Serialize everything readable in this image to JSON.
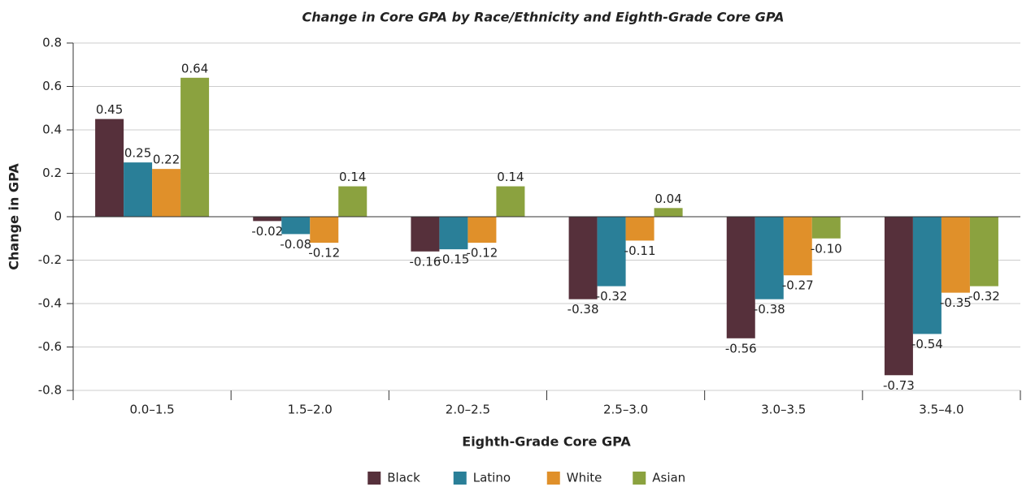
{
  "chart_data": {
    "type": "bar",
    "title": "Change in Core GPA by Race/Ethnicity and Eighth-Grade Core GPA",
    "xlabel": "Eighth-Grade Core GPA",
    "ylabel": "Change in GPA",
    "categories": [
      "0.0–1.5",
      "1.5–2.0",
      "2.0–2.5",
      "2.5–3.0",
      "3.0–3.5",
      "3.5–4.0"
    ],
    "series": [
      {
        "name": "Black",
        "color": "#56303b",
        "values": [
          0.45,
          -0.02,
          -0.16,
          -0.38,
          -0.56,
          -0.73
        ]
      },
      {
        "name": "Latino",
        "color": "#2a7f98",
        "values": [
          0.25,
          -0.08,
          -0.15,
          -0.32,
          -0.38,
          -0.54
        ]
      },
      {
        "name": "White",
        "color": "#e0902a",
        "values": [
          0.22,
          -0.12,
          -0.12,
          -0.11,
          -0.27,
          -0.35
        ]
      },
      {
        "name": "Asian",
        "color": "#8ba23f",
        "values": [
          0.64,
          0.14,
          0.14,
          0.04,
          -0.1,
          -0.32
        ],
        "value_labels": [
          "0.64",
          "0.14",
          "0.14",
          "0.04",
          "-0.10",
          "-0.32"
        ]
      }
    ],
    "ylim": [
      -0.8,
      0.8
    ],
    "yticks": [
      -0.8,
      -0.6,
      -0.4,
      -0.2,
      0,
      0.2,
      0.4,
      0.6,
      0.8
    ],
    "grid": true,
    "legend": "bottom"
  }
}
